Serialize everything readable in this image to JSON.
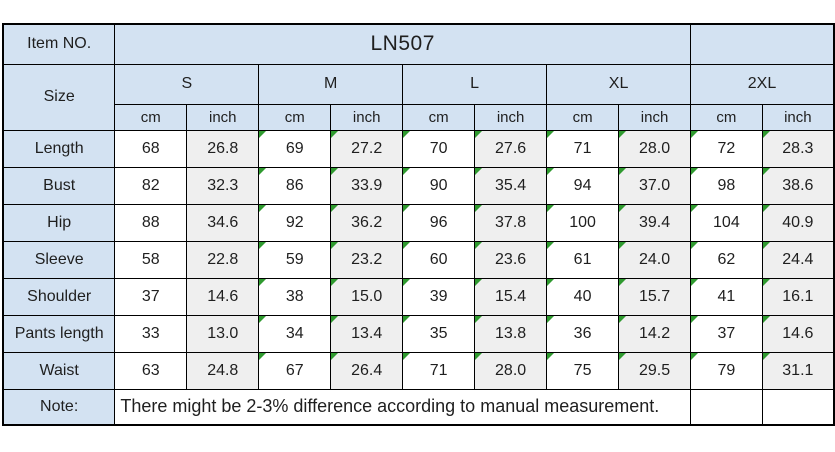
{
  "table": {
    "item_no_label": "Item NO.",
    "item_no_value": "LN507",
    "size_label": "Size",
    "sizes": [
      "S",
      "M",
      "L",
      "XL",
      "2XL"
    ],
    "units": [
      "cm",
      "inch",
      "cm",
      "inch",
      "cm",
      "inch",
      "cm",
      "inch",
      "cm",
      "inch"
    ],
    "rows": [
      {
        "label": "Length",
        "values": [
          "68",
          "26.8",
          "69",
          "27.2",
          "70",
          "27.6",
          "71",
          "28.0",
          "72",
          "28.3"
        ]
      },
      {
        "label": "Bust",
        "values": [
          "82",
          "32.3",
          "86",
          "33.9",
          "90",
          "35.4",
          "94",
          "37.0",
          "98",
          "38.6"
        ]
      },
      {
        "label": "Hip",
        "values": [
          "88",
          "34.6",
          "92",
          "36.2",
          "96",
          "37.8",
          "100",
          "39.4",
          "104",
          "40.9"
        ]
      },
      {
        "label": "Sleeve",
        "values": [
          "58",
          "22.8",
          "59",
          "23.2",
          "60",
          "23.6",
          "61",
          "24.0",
          "62",
          "24.4"
        ]
      },
      {
        "label": "Shoulder",
        "values": [
          "37",
          "14.6",
          "38",
          "15.0",
          "39",
          "15.4",
          "40",
          "15.7",
          "41",
          "16.1"
        ]
      },
      {
        "label": "Pants length",
        "values": [
          "33",
          "13.0",
          "34",
          "13.4",
          "35",
          "13.8",
          "36",
          "14.2",
          "37",
          "14.6"
        ]
      },
      {
        "label": "Waist",
        "values": [
          "63",
          "24.8",
          "67",
          "26.4",
          "71",
          "28.0",
          "75",
          "29.5",
          "79",
          "31.1"
        ]
      }
    ],
    "note_label": "Note:",
    "note_text": "There might be 2-3% difference according to manual measurement."
  },
  "colors": {
    "header_bg": "#d3e2f2",
    "cm_column_bg": "#ffffff",
    "inch_column_bg": "#efefef",
    "grid_border": "#000000",
    "error_flag_green": "#2f9a2f",
    "text": "#1f1f1f"
  },
  "icons": {
    "cell_corner_flag": "green-corner-triangle-icon"
  }
}
